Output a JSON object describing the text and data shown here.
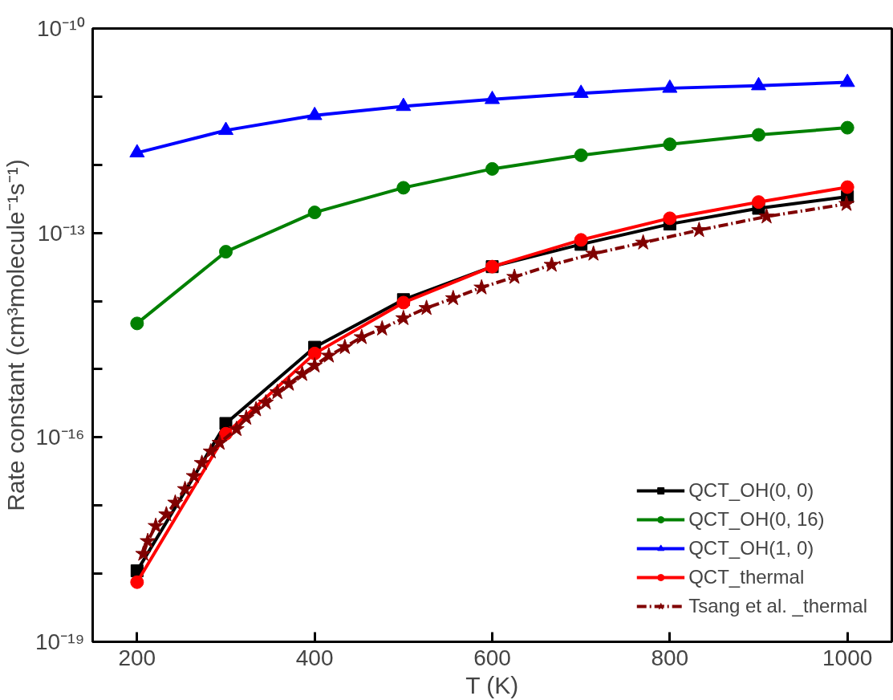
{
  "chart_data": {
    "type": "line",
    "xlabel": "T (K)",
    "ylabel": "Rate constant (cm³molecule⁻¹s⁻¹)",
    "log": "y",
    "grid": false,
    "legend": "bottom right",
    "xlim": [
      150,
      1050
    ],
    "xticks": [
      200,
      400,
      600,
      800,
      1000
    ],
    "ylim": [
      1e-19,
      1e-10
    ],
    "yticks": [
      {
        "value": 1e-19,
        "label": "10⁻¹⁹"
      },
      {
        "value": 1e-18,
        "label": null
      },
      {
        "value": 1e-17,
        "label": null
      },
      {
        "value": 1e-16,
        "label": "10⁻¹⁶"
      },
      {
        "value": 1e-15,
        "label": null
      },
      {
        "value": 1e-14,
        "label": null
      },
      {
        "value": 1e-13,
        "label": "10⁻¹³"
      },
      {
        "value": 1e-12,
        "label": null
      },
      {
        "value": 1e-11,
        "label": null
      },
      {
        "value": 1e-10,
        "label": "10⁻¹⁰"
      }
    ],
    "series": [
      {
        "name": "QCT_OH(0, 0)",
        "color": "#000000",
        "marker": "square",
        "line_style": "solid",
        "x": [
          200,
          300,
          400,
          500,
          600,
          700,
          800,
          900,
          1000
        ],
        "values": [
          1.1e-18,
          1.6e-16,
          2.1e-15,
          1.05e-14,
          3.2e-14,
          6.8e-14,
          1.35e-13,
          2.3e-13,
          3.4e-13
        ]
      },
      {
        "name": "QCT_OH(0, 16)",
        "color": "#008000",
        "marker": "circle",
        "line_style": "solid",
        "x": [
          200,
          300,
          400,
          500,
          600,
          700,
          800,
          900,
          1000
        ],
        "values": [
          4.7e-15,
          5.3e-14,
          2e-13,
          4.6e-13,
          8.7e-13,
          1.38e-12,
          2e-12,
          2.75e-12,
          3.5e-12
        ]
      },
      {
        "name": "QCT_OH(1, 0)",
        "color": "#0000ff",
        "marker": "triangle",
        "line_style": "solid",
        "x": [
          200,
          300,
          400,
          500,
          600,
          700,
          800,
          900,
          1000
        ],
        "values": [
          1.5e-12,
          3.2e-12,
          5.3e-12,
          7.2e-12,
          9.1e-12,
          1.12e-11,
          1.33e-11,
          1.45e-11,
          1.62e-11
        ]
      },
      {
        "name": "QCT_thermal",
        "color": "#ff0000",
        "marker": "circle",
        "line_style": "solid",
        "x": [
          200,
          300,
          400,
          500,
          600,
          700,
          800,
          900,
          1000
        ],
        "values": [
          7.5e-19,
          1.13e-16,
          1.7e-15,
          9.5e-15,
          3.2e-14,
          7.9e-14,
          1.64e-13,
          2.84e-13,
          4.7e-13
        ]
      },
      {
        "name": "Tsang et al. _thermal",
        "color": "#800000",
        "marker": "star",
        "line_style": "dashed",
        "x": [
          207,
          212,
          221,
          233,
          243,
          254,
          264,
          273,
          283,
          293,
          312,
          323,
          334,
          345,
          358,
          371,
          386,
          400,
          416,
          434,
          453,
          476,
          500,
          526,
          556,
          588,
          625,
          667,
          714,
          770,
          833,
          909,
          999
        ],
        "values": [
          1.95e-18,
          3e-18,
          5e-18,
          7.4e-18,
          1.1e-17,
          1.74e-17,
          2.7e-17,
          4.2e-17,
          6.2e-17,
          8.3e-17,
          1.32e-16,
          1.93e-16,
          2.57e-16,
          3.24e-16,
          4.6e-16,
          6.1e-16,
          8.5e-16,
          1.13e-15,
          1.58e-15,
          2.11e-15,
          2.95e-15,
          3.94e-15,
          5.6e-15,
          7.9e-15,
          1.1e-14,
          1.58e-14,
          2.26e-14,
          3.4e-14,
          4.95e-14,
          7.2e-14,
          1.1e-13,
          1.74e-13,
          2.66e-13
        ]
      }
    ]
  }
}
